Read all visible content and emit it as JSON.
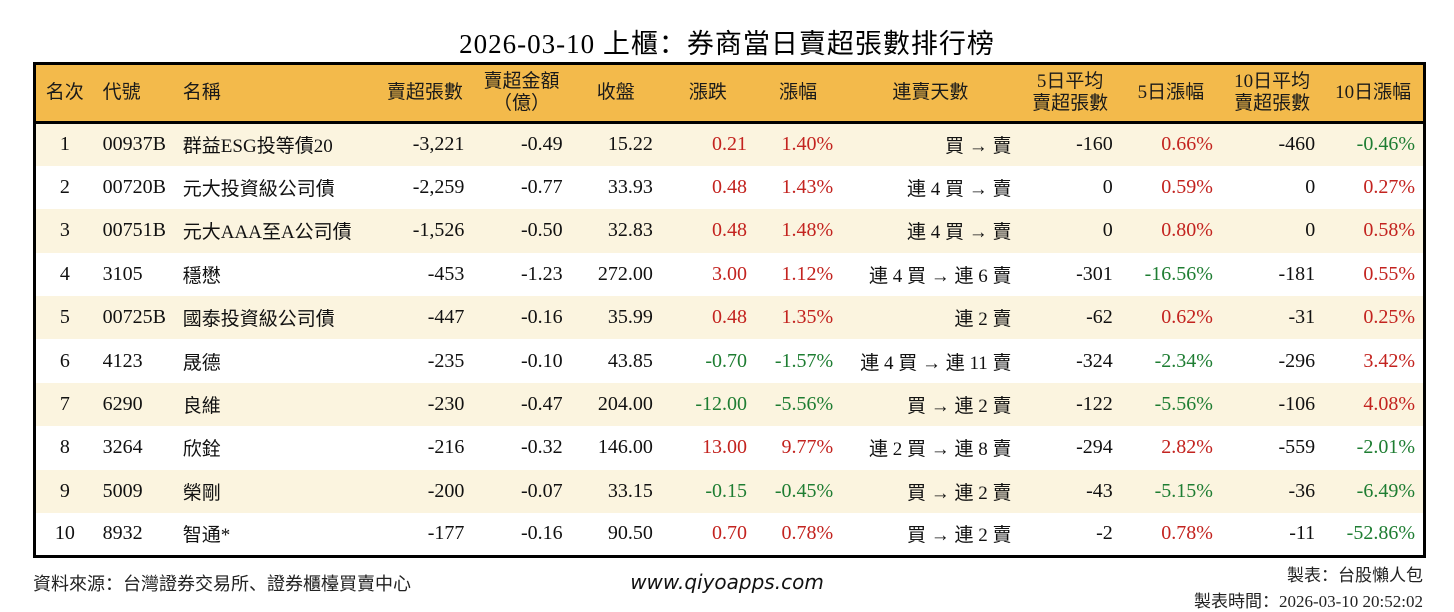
{
  "title": "2026-03-10 上櫃：券商當日賣超張數排行榜",
  "colors": {
    "header_bg": "#F3BA4B",
    "row_alt_bg": "#FBF4DF",
    "up_red": "#C3231F",
    "down_green": "#1E7D32",
    "border": "#000000"
  },
  "chart_data": {
    "type": "table",
    "title": "2026-03-10 上櫃：券商當日賣超張數排行榜",
    "columns": [
      {
        "key": "rank",
        "label": "名次"
      },
      {
        "key": "code",
        "label": "代號"
      },
      {
        "key": "name",
        "label": "名稱"
      },
      {
        "key": "sell_lots",
        "label": "賣超張數"
      },
      {
        "key": "sell_amt",
        "label": "賣超金額\n（億）"
      },
      {
        "key": "close",
        "label": "收盤"
      },
      {
        "key": "chg",
        "label": "漲跌"
      },
      {
        "key": "chg_pct",
        "label": "漲幅"
      },
      {
        "key": "streak",
        "label": "連賣天數"
      },
      {
        "key": "avg5",
        "label": "5日平均\n賣超張數"
      },
      {
        "key": "pct5",
        "label": "5日漲幅"
      },
      {
        "key": "avg10",
        "label": "10日平均\n賣超張數"
      },
      {
        "key": "pct10",
        "label": "10日漲幅"
      }
    ],
    "rows": [
      {
        "rank": "1",
        "code": "00937B",
        "name": "群益ESG投等債20",
        "sell_lots": "-3,221",
        "sell_amt": "-0.49",
        "close": "15.22",
        "chg": "0.21",
        "chg_c": "red",
        "chg_pct": "1.40%",
        "chg_pct_c": "red",
        "streak": "買 → 賣",
        "avg5": "-160",
        "pct5": "0.66%",
        "pct5_c": "red",
        "avg10": "-460",
        "pct10": "-0.46%",
        "pct10_c": "green"
      },
      {
        "rank": "2",
        "code": "00720B",
        "name": "元大投資級公司債",
        "sell_lots": "-2,259",
        "sell_amt": "-0.77",
        "close": "33.93",
        "chg": "0.48",
        "chg_c": "red",
        "chg_pct": "1.43%",
        "chg_pct_c": "red",
        "streak": "連 4 買 → 賣",
        "avg5": "0",
        "pct5": "0.59%",
        "pct5_c": "red",
        "avg10": "0",
        "pct10": "0.27%",
        "pct10_c": "red"
      },
      {
        "rank": "3",
        "code": "00751B",
        "name": "元大AAA至A公司債",
        "sell_lots": "-1,526",
        "sell_amt": "-0.50",
        "close": "32.83",
        "chg": "0.48",
        "chg_c": "red",
        "chg_pct": "1.48%",
        "chg_pct_c": "red",
        "streak": "連 4 買 → 賣",
        "avg5": "0",
        "pct5": "0.80%",
        "pct5_c": "red",
        "avg10": "0",
        "pct10": "0.58%",
        "pct10_c": "red"
      },
      {
        "rank": "4",
        "code": "3105",
        "name": "穩懋",
        "sell_lots": "-453",
        "sell_amt": "-1.23",
        "close": "272.00",
        "chg": "3.00",
        "chg_c": "red",
        "chg_pct": "1.12%",
        "chg_pct_c": "red",
        "streak": "連 4 買 → 連 6 賣",
        "avg5": "-301",
        "pct5": "-16.56%",
        "pct5_c": "green",
        "avg10": "-181",
        "pct10": "0.55%",
        "pct10_c": "red"
      },
      {
        "rank": "5",
        "code": "00725B",
        "name": "國泰投資級公司債",
        "sell_lots": "-447",
        "sell_amt": "-0.16",
        "close": "35.99",
        "chg": "0.48",
        "chg_c": "red",
        "chg_pct": "1.35%",
        "chg_pct_c": "red",
        "streak": "連 2 賣",
        "avg5": "-62",
        "pct5": "0.62%",
        "pct5_c": "red",
        "avg10": "-31",
        "pct10": "0.25%",
        "pct10_c": "red"
      },
      {
        "rank": "6",
        "code": "4123",
        "name": "晟德",
        "sell_lots": "-235",
        "sell_amt": "-0.10",
        "close": "43.85",
        "chg": "-0.70",
        "chg_c": "green",
        "chg_pct": "-1.57%",
        "chg_pct_c": "green",
        "streak": "連 4 買 → 連 11 賣",
        "avg5": "-324",
        "pct5": "-2.34%",
        "pct5_c": "green",
        "avg10": "-296",
        "pct10": "3.42%",
        "pct10_c": "red"
      },
      {
        "rank": "7",
        "code": "6290",
        "name": "良維",
        "sell_lots": "-230",
        "sell_amt": "-0.47",
        "close": "204.00",
        "chg": "-12.00",
        "chg_c": "green",
        "chg_pct": "-5.56%",
        "chg_pct_c": "green",
        "streak": "買 → 連 2 賣",
        "avg5": "-122",
        "pct5": "-5.56%",
        "pct5_c": "green",
        "avg10": "-106",
        "pct10": "4.08%",
        "pct10_c": "red"
      },
      {
        "rank": "8",
        "code": "3264",
        "name": "欣銓",
        "sell_lots": "-216",
        "sell_amt": "-0.32",
        "close": "146.00",
        "chg": "13.00",
        "chg_c": "red",
        "chg_pct": "9.77%",
        "chg_pct_c": "red",
        "streak": "連 2 買 → 連 8 賣",
        "avg5": "-294",
        "pct5": "2.82%",
        "pct5_c": "red",
        "avg10": "-559",
        "pct10": "-2.01%",
        "pct10_c": "green"
      },
      {
        "rank": "9",
        "code": "5009",
        "name": "榮剛",
        "sell_lots": "-200",
        "sell_amt": "-0.07",
        "close": "33.15",
        "chg": "-0.15",
        "chg_c": "green",
        "chg_pct": "-0.45%",
        "chg_pct_c": "green",
        "streak": "買 → 連 2 賣",
        "avg5": "-43",
        "pct5": "-5.15%",
        "pct5_c": "green",
        "avg10": "-36",
        "pct10": "-6.49%",
        "pct10_c": "green"
      },
      {
        "rank": "10",
        "code": "8932",
        "name": "智通*",
        "sell_lots": "-177",
        "sell_amt": "-0.16",
        "close": "90.50",
        "chg": "0.70",
        "chg_c": "red",
        "chg_pct": "0.78%",
        "chg_pct_c": "red",
        "streak": "買 → 連 2 賣",
        "avg5": "-2",
        "pct5": "0.78%",
        "pct5_c": "red",
        "avg10": "-11",
        "pct10": "-52.86%",
        "pct10_c": "green"
      }
    ]
  },
  "footer": {
    "source": "資料來源：台灣證券交易所、證券櫃檯買賣中心",
    "website": "www.qiyoapps.com",
    "credit": "製表：台股懶人包",
    "generated": "製表時間：2026-03-10 20:52:02"
  }
}
